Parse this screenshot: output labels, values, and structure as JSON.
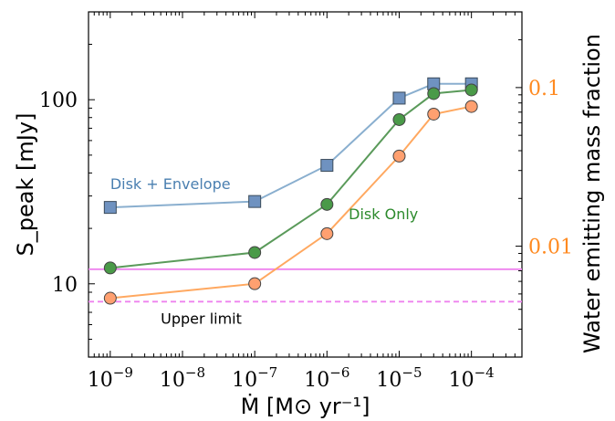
{
  "chart_data": {
    "type": "line",
    "xlabel": "Ṁ [M⊙ yr⁻¹]",
    "ylabel": "S_peak [mJy]",
    "ylabel_right": "Water emitting mass fraction",
    "xscale": "log",
    "yscale": "log",
    "xlim": [
      5e-10,
      0.0005
    ],
    "ylim": [
      4,
      300
    ],
    "ylim_right": [
      0.002,
      0.3
    ],
    "grid": false,
    "x_tick_labels": [
      "10^-9",
      "10^-8",
      "10^-7",
      "10^-6",
      "10^-5",
      "10^-4"
    ],
    "y_tick_labels": [
      "10",
      "100"
    ],
    "y_right_tick_labels": [
      "0.01",
      "0.1"
    ],
    "colors": {
      "disk_envelope": "#8aafcf",
      "disk_envelope_marker": "#6f92c0",
      "disk_envelope_text": "#4a7fb0",
      "disk_only": "#5a9a5a",
      "disk_only_marker": "#4a9a48",
      "disk_only_text": "#2c8a2c",
      "water": "#ffa860",
      "water_marker": "#ffa070",
      "right_axis": "#ff8a20",
      "limit": "#ee82ee"
    },
    "series": [
      {
        "name": "Disk + Envelope",
        "axis": "left",
        "marker": "square",
        "x": [
          1e-09,
          1e-07,
          1e-06,
          1e-05,
          3e-05,
          0.0001
        ],
        "y": [
          26,
          28,
          44,
          102,
          122,
          122
        ]
      },
      {
        "name": "Disk Only",
        "axis": "left",
        "marker": "circle",
        "x": [
          1e-09,
          1e-07,
          1e-06,
          1e-05,
          3e-05,
          0.0001
        ],
        "y": [
          12.2,
          14.8,
          27,
          78,
          108,
          113
        ]
      },
      {
        "axis": "right",
        "marker": "circle",
        "x": [
          1e-09,
          1e-07,
          1e-06,
          1e-05,
          3e-05,
          0.0001
        ],
        "y": [
          0.0047,
          0.0058,
          0.012,
          0.037,
          0.068,
          0.076
        ]
      }
    ],
    "hlines": [
      {
        "y": 12,
        "style": "solid"
      },
      {
        "y": 8,
        "style": "dashed"
      }
    ],
    "annotations": [
      {
        "text": "Disk + Envelope"
      },
      {
        "text": "Disk Only"
      },
      {
        "text": "Upper limit"
      }
    ]
  }
}
